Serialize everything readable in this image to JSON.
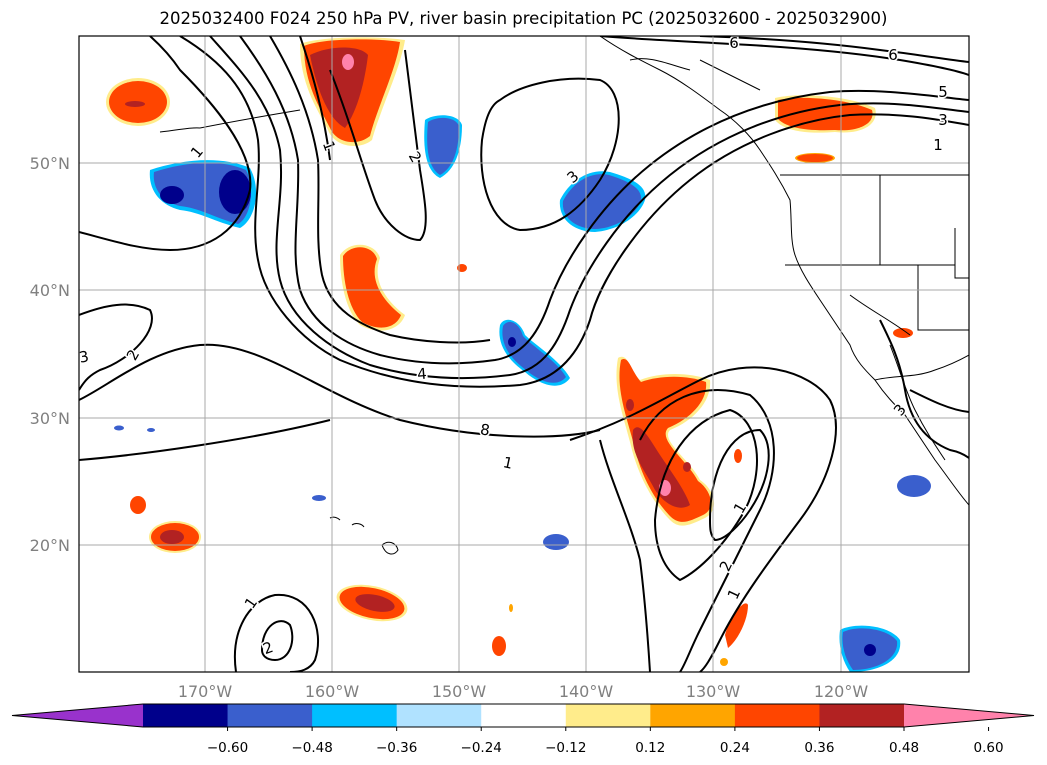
{
  "title": "2025032400 F024 250 hPa PV, river basin precipitation PC (2025032600 - 2025032900)",
  "map": {
    "lon_labels": [
      "170°W",
      "160°W",
      "150°W",
      "140°W",
      "130°W",
      "120°W"
    ],
    "lat_labels": [
      "50°N",
      "40°N",
      "30°N",
      "20°N"
    ],
    "contour_labels": [
      "1",
      "2",
      "4",
      "8",
      "1",
      "6",
      "6",
      "5",
      "3",
      "1",
      "3",
      "2",
      "1",
      "1",
      "2",
      "1",
      "1",
      "2",
      "3",
      "3",
      "6"
    ]
  },
  "colorbar": {
    "ticks": [
      "−0.60",
      "−0.48",
      "−0.36",
      "−0.24",
      "−0.12",
      "0.12",
      "0.24",
      "0.36",
      "0.48",
      "0.60"
    ],
    "colors": [
      "#9932cc",
      "#00008b",
      "#3a5fcd",
      "#00bfff",
      "#b0e2ff",
      "#ffffff",
      "#ffec8b",
      "#ffa500",
      "#ff4500",
      "#b22222",
      "#ff82ab"
    ]
  }
}
